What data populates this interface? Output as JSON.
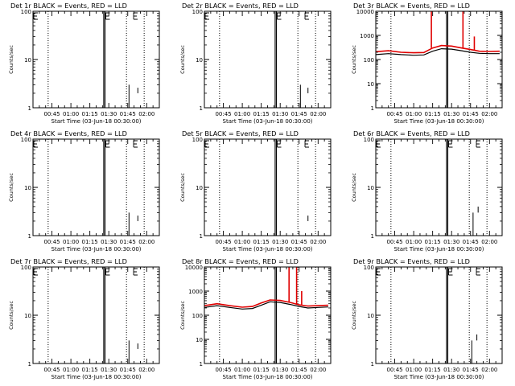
{
  "figure": {
    "x_tick_labels": [
      "00:45",
      "01:00",
      "01:15",
      "01:30",
      "01:45",
      "02:00"
    ],
    "x_label": "Start Time (03-Jun-18 00:30:00)",
    "y_label": "Counts/sec",
    "colors": {
      "events": "#000000",
      "lld": "#e00000",
      "axes": "#000000"
    }
  },
  "chart_data": [
    {
      "type": "line",
      "title": "Det 1r BLACK = Events, RED = LLD",
      "xlabel": "Start Time (03-Jun-18 00:30:00)",
      "ylabel": "Counts/sec",
      "yscale": "log",
      "xlim": [
        "00:30",
        "02:10"
      ],
      "ylim": [
        1,
        100
      ],
      "y_tick_labels": [
        "1",
        "10",
        "100"
      ],
      "x_ticks": [
        "00:45",
        "01:00",
        "01:15",
        "01:30",
        "01:45",
        "02:00"
      ],
      "dotted_vertical_lines": [
        "00:42",
        "01:44",
        "01:58"
      ],
      "solid_vertical_lines": [
        "01:26",
        "01:27"
      ],
      "series": [
        {
          "color": "#000000",
          "points": []
        },
        {
          "color": "#e00000",
          "points": []
        }
      ],
      "spikes": [
        {
          "color": "#000000",
          "x": "01:46",
          "y0": 1,
          "y1": 3
        },
        {
          "color": "#000000",
          "x": "01:53",
          "y0": 2,
          "y1": 2.6
        }
      ],
      "bracket_marks": [
        "00:30",
        "01:27",
        "01:49"
      ]
    },
    {
      "type": "line",
      "title": "Det 2r BLACK = Events, RED = LLD",
      "xlabel": "Start Time (03-Jun-18 00:30:00)",
      "ylabel": "Counts/sec",
      "yscale": "log",
      "xlim": [
        "00:30",
        "02:10"
      ],
      "ylim": [
        1,
        100
      ],
      "y_tick_labels": [
        "1",
        "10",
        "100"
      ],
      "x_ticks": [
        "00:45",
        "01:00",
        "01:15",
        "01:30",
        "01:45",
        "02:00"
      ],
      "dotted_vertical_lines": [
        "00:42",
        "01:44",
        "01:58"
      ],
      "solid_vertical_lines": [
        "01:26",
        "01:27"
      ],
      "series": [
        {
          "color": "#000000",
          "points": []
        },
        {
          "color": "#e00000",
          "points": []
        }
      ],
      "spikes": [
        {
          "color": "#000000",
          "x": "01:46",
          "y0": 1,
          "y1": 3
        },
        {
          "color": "#000000",
          "x": "01:52",
          "y0": 2,
          "y1": 2.6
        }
      ],
      "bracket_marks": [
        "00:30",
        "01:27",
        "01:49"
      ]
    },
    {
      "type": "line",
      "title": "Det 3r BLACK = Events, RED = LLD",
      "xlabel": "Start Time (03-Jun-18 00:30:00)",
      "ylabel": "Counts/sec",
      "yscale": "log",
      "xlim": [
        "00:30",
        "02:10"
      ],
      "ylim": [
        1,
        10000
      ],
      "y_tick_labels": [
        "1",
        "10",
        "100",
        "1000",
        "10000"
      ],
      "x_ticks": [
        "00:45",
        "01:00",
        "01:15",
        "01:30",
        "01:45",
        "02:00"
      ],
      "dotted_vertical_lines": [
        "00:42",
        "01:44",
        "01:58"
      ],
      "solid_vertical_lines": [
        "01:26",
        "01:27"
      ],
      "series": [
        {
          "color": "#000000",
          "points": [
            [
              "00:30",
              160
            ],
            [
              "00:40",
              175
            ],
            [
              "00:50",
              160
            ],
            [
              "01:00",
              150
            ],
            [
              "01:08",
              155
            ],
            [
              "01:15",
              220
            ],
            [
              "01:22",
              280
            ],
            [
              "01:30",
              270
            ],
            [
              "01:38",
              230
            ],
            [
              "01:45",
              200
            ],
            [
              "01:52",
              180
            ],
            [
              "02:00",
              175
            ],
            [
              "02:08",
              175
            ]
          ]
        },
        {
          "color": "#e00000",
          "points": [
            [
              "00:30",
              210
            ],
            [
              "00:40",
              230
            ],
            [
              "00:50",
              200
            ],
            [
              "01:00",
              190
            ],
            [
              "01:08",
              195
            ],
            [
              "01:15",
              300
            ],
            [
              "01:22",
              380
            ],
            [
              "01:30",
              360
            ],
            [
              "01:38",
              300
            ],
            [
              "01:45",
              260
            ],
            [
              "01:52",
              220
            ],
            [
              "02:00",
              215
            ],
            [
              "02:08",
              220
            ]
          ]
        }
      ],
      "spikes": [
        {
          "color": "#e00000",
          "x": "01:14",
          "y0": 300,
          "y1": 10000
        },
        {
          "color": "#e00000",
          "x": "01:39",
          "y0": 300,
          "y1": 10000
        },
        {
          "color": "#e00000",
          "x": "01:48",
          "y0": 250,
          "y1": 900
        }
      ],
      "bracket_marks": []
    },
    {
      "type": "line",
      "title": "Det 4r BLACK = Events, RED = LLD",
      "xlabel": "Start Time (03-Jun-18 00:30:00)",
      "ylabel": "Counts/sec",
      "yscale": "log",
      "xlim": [
        "00:30",
        "02:10"
      ],
      "ylim": [
        1,
        100
      ],
      "y_tick_labels": [
        "1",
        "10",
        "100"
      ],
      "x_ticks": [
        "00:45",
        "01:00",
        "01:15",
        "01:30",
        "01:45",
        "02:00"
      ],
      "dotted_vertical_lines": [
        "00:42",
        "01:44",
        "01:58"
      ],
      "solid_vertical_lines": [
        "01:26",
        "01:27"
      ],
      "series": [
        {
          "color": "#000000",
          "points": []
        },
        {
          "color": "#e00000",
          "points": []
        }
      ],
      "spikes": [
        {
          "color": "#000000",
          "x": "01:46",
          "y0": 1,
          "y1": 3
        },
        {
          "color": "#000000",
          "x": "01:53",
          "y0": 2,
          "y1": 2.6
        }
      ],
      "bracket_marks": [
        "00:30",
        "01:27",
        "01:49"
      ]
    },
    {
      "type": "line",
      "title": "Det 5r BLACK = Events, RED = LLD",
      "xlabel": "Start Time (03-Jun-18 00:30:00)",
      "ylabel": "Counts/sec",
      "yscale": "log",
      "xlim": [
        "00:30",
        "02:10"
      ],
      "ylim": [
        1,
        100
      ],
      "y_tick_labels": [
        "1",
        "10",
        "100"
      ],
      "x_ticks": [
        "00:45",
        "01:00",
        "01:15",
        "01:30",
        "01:45",
        "02:00"
      ],
      "dotted_vertical_lines": [
        "00:42",
        "01:44",
        "01:58"
      ],
      "solid_vertical_lines": [
        "01:26",
        "01:27"
      ],
      "series": [
        {
          "color": "#000000",
          "points": []
        },
        {
          "color": "#e00000",
          "points": []
        }
      ],
      "spikes": [
        {
          "color": "#000000",
          "x": "01:52",
          "y0": 2,
          "y1": 2.6
        }
      ],
      "bracket_marks": [
        "00:30",
        "01:27",
        "01:49"
      ]
    },
    {
      "type": "line",
      "title": "Det 6r BLACK = Events, RED = LLD",
      "xlabel": "Start Time (03-Jun-18 00:30:00)",
      "ylabel": "Counts/sec",
      "yscale": "log",
      "xlim": [
        "00:30",
        "02:10"
      ],
      "ylim": [
        1,
        100
      ],
      "y_tick_labels": [
        "1",
        "10",
        "100"
      ],
      "x_ticks": [
        "00:45",
        "01:00",
        "01:15",
        "01:30",
        "01:45",
        "02:00"
      ],
      "dotted_vertical_lines": [
        "00:42",
        "01:44",
        "01:58"
      ],
      "solid_vertical_lines": [
        "01:26",
        "01:27"
      ],
      "series": [
        {
          "color": "#000000",
          "points": []
        },
        {
          "color": "#e00000",
          "points": []
        }
      ],
      "spikes": [
        {
          "color": "#000000",
          "x": "01:47",
          "y0": 1,
          "y1": 3
        },
        {
          "color": "#000000",
          "x": "01:51",
          "y0": 3,
          "y1": 4
        }
      ],
      "bracket_marks": [
        "00:30",
        "01:27",
        "01:49"
      ]
    },
    {
      "type": "line",
      "title": "Det 7r BLACK = Events, RED = LLD",
      "xlabel": "Start Time (03-Jun-18 00:30:00)",
      "ylabel": "Counts/sec",
      "yscale": "log",
      "xlim": [
        "00:30",
        "02:10"
      ],
      "ylim": [
        1,
        100
      ],
      "y_tick_labels": [
        "1",
        "10",
        "100"
      ],
      "x_ticks": [
        "00:45",
        "01:00",
        "01:15",
        "01:30",
        "01:45",
        "02:00"
      ],
      "dotted_vertical_lines": [
        "00:42",
        "01:44",
        "01:58"
      ],
      "solid_vertical_lines": [
        "01:26",
        "01:27"
      ],
      "series": [
        {
          "color": "#000000",
          "points": []
        },
        {
          "color": "#e00000",
          "points": []
        }
      ],
      "spikes": [
        {
          "color": "#000000",
          "x": "01:46",
          "y0": 1,
          "y1": 3
        },
        {
          "color": "#000000",
          "x": "01:53",
          "y0": 2,
          "y1": 2.6
        }
      ],
      "bracket_marks": [
        "00:30",
        "01:27",
        "01:49"
      ]
    },
    {
      "type": "line",
      "title": "Det 8r BLACK = Events, RED = LLD",
      "xlabel": "Start Time (03-Jun-18 00:30:00)",
      "ylabel": "Counts/sec",
      "yscale": "log",
      "xlim": [
        "00:30",
        "02:10"
      ],
      "ylim": [
        1,
        10000
      ],
      "y_tick_labels": [
        "1",
        "10",
        "100",
        "1000",
        "10000"
      ],
      "x_ticks": [
        "00:45",
        "01:00",
        "01:15",
        "01:30",
        "01:45",
        "02:00"
      ],
      "dotted_vertical_lines": [
        "00:42",
        "01:44",
        "01:58"
      ],
      "solid_vertical_lines": [
        "01:26",
        "01:27"
      ],
      "series": [
        {
          "color": "#000000",
          "points": [
            [
              "00:30",
              210
            ],
            [
              "00:40",
              250
            ],
            [
              "00:50",
              210
            ],
            [
              "01:00",
              180
            ],
            [
              "01:08",
              190
            ],
            [
              "01:15",
              260
            ],
            [
              "01:22",
              360
            ],
            [
              "01:30",
              340
            ],
            [
              "01:38",
              280
            ],
            [
              "01:45",
              230
            ],
            [
              "01:52",
              200
            ],
            [
              "02:00",
              210
            ],
            [
              "02:08",
              220
            ]
          ]
        },
        {
          "color": "#e00000",
          "points": [
            [
              "00:30",
              250
            ],
            [
              "00:40",
              300
            ],
            [
              "00:50",
              250
            ],
            [
              "01:00",
              215
            ],
            [
              "01:08",
              230
            ],
            [
              "01:15",
              320
            ],
            [
              "01:22",
              430
            ],
            [
              "01:30",
              410
            ],
            [
              "01:38",
              340
            ],
            [
              "01:45",
              270
            ],
            [
              "01:52",
              240
            ],
            [
              "02:00",
              250
            ],
            [
              "02:08",
              260
            ]
          ]
        }
      ],
      "spikes": [
        {
          "color": "#e00000",
          "x": "01:37",
          "y0": 350,
          "y1": 10000
        },
        {
          "color": "#e00000",
          "x": "01:43",
          "y0": 300,
          "y1": 10000
        },
        {
          "color": "#e00000",
          "x": "01:47",
          "y0": 270,
          "y1": 1000
        }
      ],
      "bracket_marks": []
    },
    {
      "type": "line",
      "title": "Det 9r BLACK = Events, RED = LLD",
      "xlabel": "Start Time (03-Jun-18 00:30:00)",
      "ylabel": "Counts/sec",
      "yscale": "log",
      "xlim": [
        "00:30",
        "02:10"
      ],
      "ylim": [
        1,
        100
      ],
      "y_tick_labels": [
        "1",
        "10",
        "100"
      ],
      "x_ticks": [
        "00:45",
        "01:00",
        "01:15",
        "01:30",
        "01:45",
        "02:00"
      ],
      "dotted_vertical_lines": [
        "00:42",
        "01:44",
        "01:58"
      ],
      "solid_vertical_lines": [
        "01:26",
        "01:27"
      ],
      "series": [
        {
          "color": "#000000",
          "points": []
        },
        {
          "color": "#e00000",
          "points": []
        }
      ],
      "spikes": [
        {
          "color": "#000000",
          "x": "01:46",
          "y0": 1,
          "y1": 3
        },
        {
          "color": "#000000",
          "x": "01:50",
          "y0": 3,
          "y1": 4
        }
      ],
      "bracket_marks": [
        "00:30",
        "01:27",
        "01:49"
      ]
    }
  ]
}
